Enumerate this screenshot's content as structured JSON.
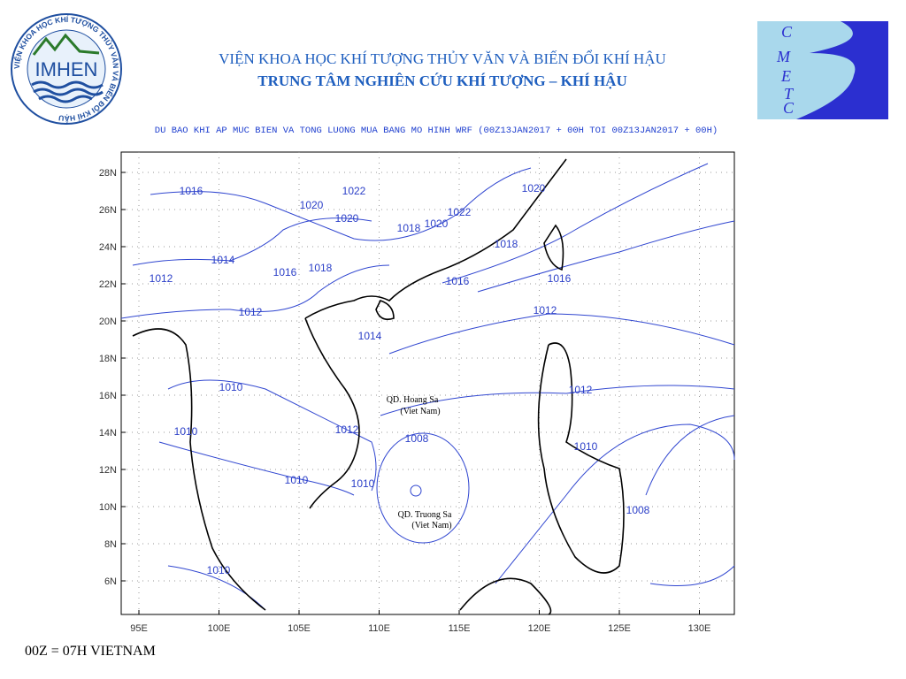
{
  "header": {
    "institute": "VIỆN KHOA HỌC KHÍ TƯỢNG THỦY VĂN VÀ BIẾN ĐỔI KHÍ HẬU",
    "center": "TRUNG TÂM NGHIÊN CỨU KHÍ TƯỢNG – KHÍ HẬU"
  },
  "logos": {
    "imhen": {
      "name": "IMHEN",
      "ring": "VIỆN KHOA HỌC KHÍ TƯỢNG THỦY VĂN VÀ BIẾN ĐỔI KHÍ HẬU"
    },
    "cmetc": [
      "C",
      "M",
      "E",
      "T",
      "C"
    ]
  },
  "map": {
    "title": "DU BAO KHI AP MUC BIEN VA TONG LUONG MUA BANG MO HINH WRF (00Z13JAN2017 + 00H TOI 00Z13JAN2017 + 00H)",
    "lat_labels": [
      "28N",
      "26N",
      "24N",
      "22N",
      "20N",
      "18N",
      "16N",
      "14N",
      "12N",
      "10N",
      "8N",
      "6N"
    ],
    "lon_labels": [
      "95E",
      "100E",
      "105E",
      "110E",
      "115E",
      "120E",
      "125E",
      "130E"
    ],
    "contour_labels": [
      "1016",
      "1022",
      "1020",
      "1020",
      "1018",
      "1020",
      "1022",
      "1020",
      "1018",
      "1014",
      "1016",
      "1018",
      "1012",
      "1016",
      "1016",
      "1012",
      "1012",
      "1014",
      "1010",
      "1012",
      "1010",
      "1012",
      "1008",
      "1010",
      "1010",
      "1010",
      "1008",
      "1010"
    ],
    "annotations": [
      "QD. Hoang Sa",
      "(Viet Nam)",
      "QD. Truong Sa",
      "(Viet Nam)"
    ]
  },
  "footer": "00Z = 07H VIETNAM"
}
